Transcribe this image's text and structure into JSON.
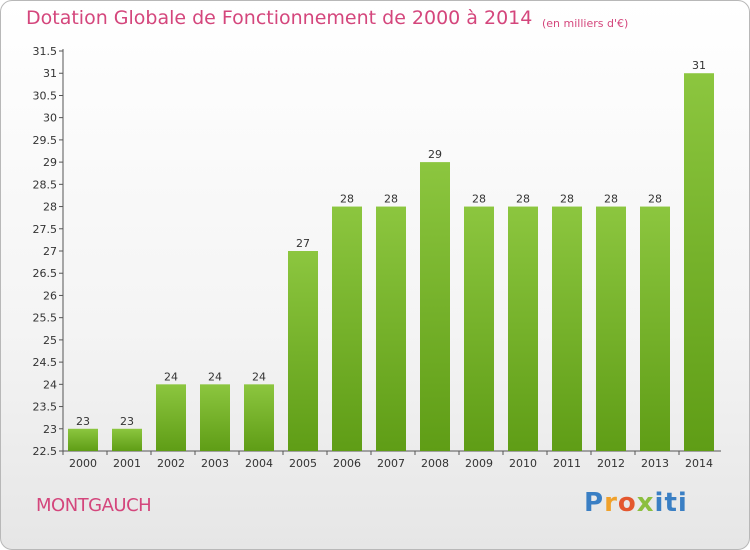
{
  "chart_data": {
    "type": "bar",
    "title": "Dotation Globale de Fonctionnement de 2000 à 2014",
    "subtitle": "(en milliers d'€)",
    "categories": [
      "2000",
      "2001",
      "2002",
      "2003",
      "2004",
      "2005",
      "2006",
      "2007",
      "2008",
      "2009",
      "2010",
      "2011",
      "2012",
      "2013",
      "2014"
    ],
    "values": [
      23,
      23,
      24,
      24,
      24,
      27,
      28,
      28,
      29,
      28,
      28,
      28,
      28,
      28,
      31
    ],
    "ylim": [
      22.5,
      31.5
    ],
    "yticks": [
      "22.5",
      "23",
      "23.5",
      "24",
      "24.5",
      "25",
      "25.5",
      "26",
      "26.5",
      "27",
      "27.5",
      "28",
      "28.5",
      "29",
      "29.5",
      "30",
      "30.5",
      "31",
      "31.5"
    ],
    "xlabel": "",
    "ylabel": "",
    "bar_color": "#8cc63f",
    "bar_color_dark": "#5f9d16",
    "grid": false,
    "legend": "none"
  },
  "place_name": "MONTGAUCH",
  "logo": {
    "p": "P",
    "r": "r",
    "o": "o",
    "x": "x",
    "iti": "iti"
  }
}
